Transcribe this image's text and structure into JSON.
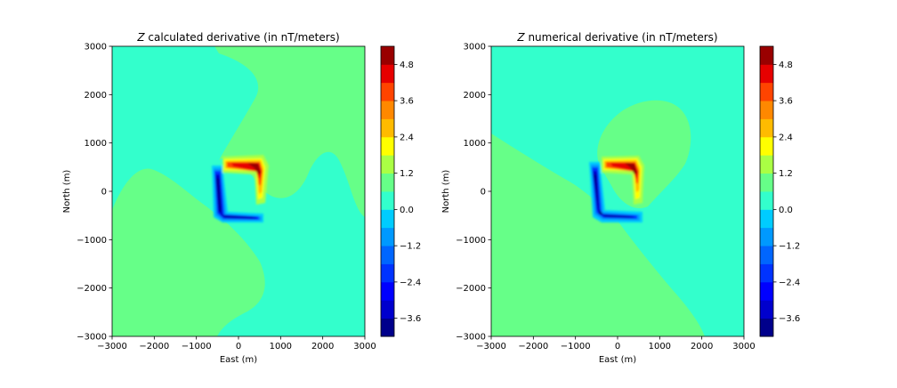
{
  "chart_data": [
    {
      "type": "filled-contour",
      "title_var": "Z",
      "title_rest": " calculated derivative (in nT/meters)",
      "xlabel": "East (m)",
      "ylabel": "North (m)",
      "xlim": [
        -3000,
        3000
      ],
      "ylim": [
        -3000,
        3000
      ],
      "xticks": [
        -3000,
        -2000,
        -1000,
        0,
        1000,
        2000,
        3000
      ],
      "yticks": [
        -3000,
        -2000,
        -1000,
        0,
        1000,
        2000,
        3000
      ],
      "grid": false,
      "colormap": "jet",
      "anomaly": {
        "positive_arm": "north and east edges of a square centred near (0, 0)",
        "negative_arm": "west and south edges",
        "half_width": 500
      },
      "colorbar": {
        "levels": [
          -4.2,
          -3.6,
          -3.0,
          -2.4,
          -1.8,
          -1.2,
          -0.6,
          0.0,
          0.6,
          1.2,
          1.8,
          2.4,
          3.0,
          3.6,
          4.2,
          4.8,
          5.4
        ],
        "ticks": [
          4.8,
          3.6,
          2.4,
          1.2,
          0.0,
          -1.2,
          -2.4,
          -3.6
        ]
      }
    },
    {
      "type": "filled-contour",
      "title_var": "Z",
      "title_rest": " numerical derivative (in nT/meters)",
      "xlabel": "East (m)",
      "ylabel": "North (m)",
      "xlim": [
        -3000,
        3000
      ],
      "ylim": [
        -3000,
        3000
      ],
      "xticks": [
        -3000,
        -2000,
        -1000,
        0,
        1000,
        2000,
        3000
      ],
      "yticks": [
        -3000,
        -2000,
        -1000,
        0,
        1000,
        2000,
        3000
      ],
      "grid": false,
      "colormap": "jet",
      "anomaly": {
        "positive_arm": "north and east edges of a square centred near (0, 0)",
        "negative_arm": "west and south edges",
        "half_width": 500
      },
      "colorbar": {
        "levels": [
          -4.2,
          -3.6,
          -3.0,
          -2.4,
          -1.8,
          -1.2,
          -0.6,
          0.0,
          0.6,
          1.2,
          1.8,
          2.4,
          3.0,
          3.6,
          4.2,
          4.8,
          5.4
        ],
        "ticks": [
          4.8,
          3.6,
          2.4,
          1.2,
          0.0,
          -1.2,
          -2.4,
          -3.6
        ]
      }
    }
  ],
  "colors": {
    "background_field": "#33ffcc",
    "weak_positive": "#66ff88",
    "jet": [
      "#00008b",
      "#0000cd",
      "#0000ff",
      "#0033ff",
      "#0066ff",
      "#0099ff",
      "#00ccff",
      "#33ffcc",
      "#66ff88",
      "#aaff44",
      "#ffff00",
      "#ffbb00",
      "#ff8800",
      "#ff4400",
      "#e60000",
      "#990000"
    ]
  }
}
